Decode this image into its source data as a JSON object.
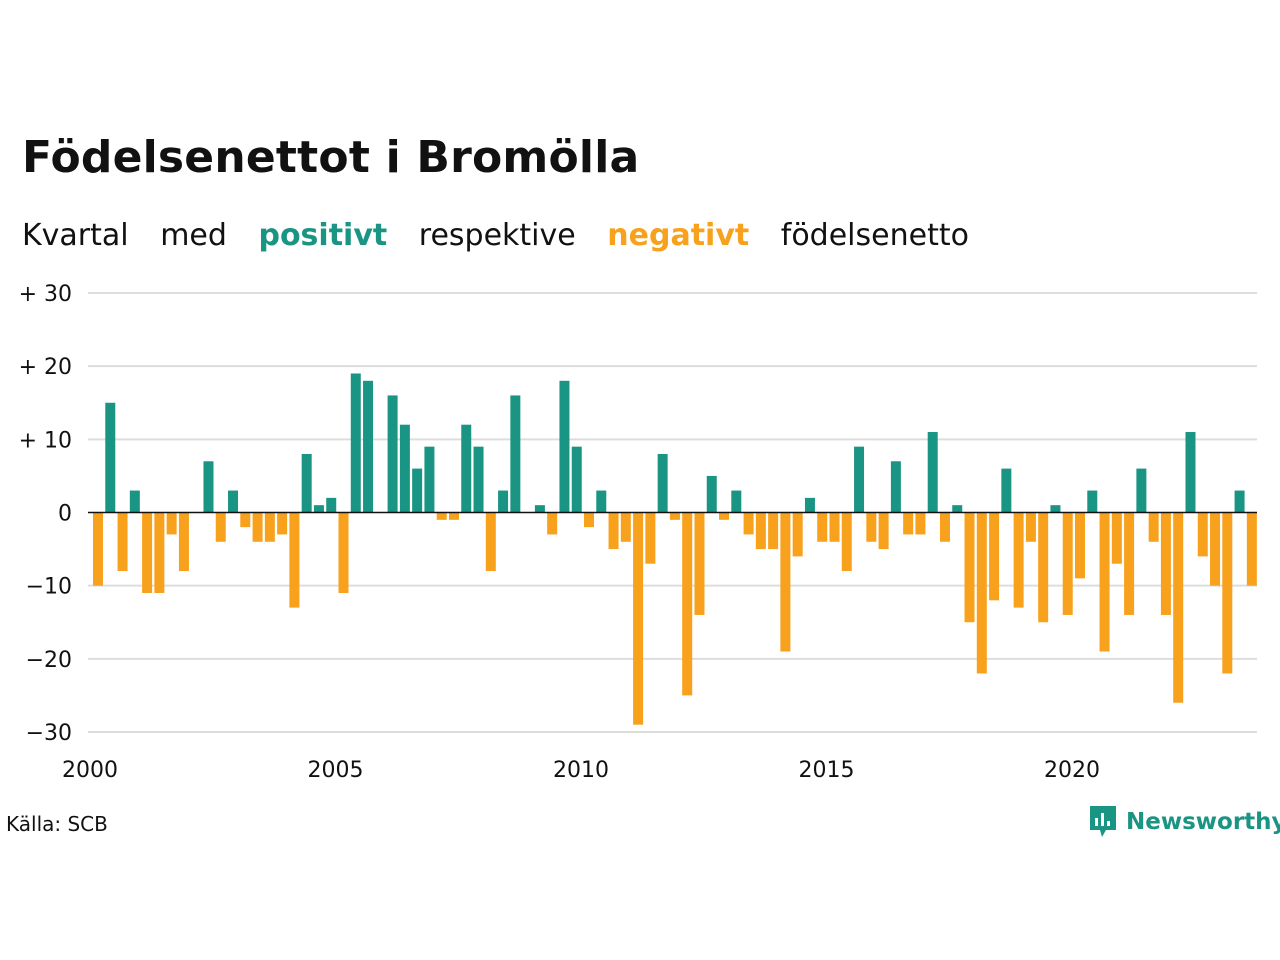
{
  "title": "Födelsenettot i Bromölla",
  "subtitle": {
    "w1": "Kvartal",
    "w2": "med",
    "positive": "positivt",
    "w3": "respektive",
    "negative": "negativt",
    "w4": "födelsenetto"
  },
  "source": "Källa: SCB",
  "logo": {
    "text": "Newsworthy",
    "icon": "newsworthy-chart-icon"
  },
  "colors": {
    "positive": "#1a9483",
    "negative": "#f7a11c",
    "grid": "#dddddd",
    "zero": "#111111"
  },
  "chart_data": {
    "type": "bar",
    "x_start": "2000 Q1",
    "ylim": [
      -30,
      30
    ],
    "yticks": [
      {
        "v": 30,
        "label": "+ 30"
      },
      {
        "v": 20,
        "label": "+ 20"
      },
      {
        "v": 10,
        "label": "+ 10"
      },
      {
        "v": 0,
        "label": "0"
      },
      {
        "v": -10,
        "label": "−10"
      },
      {
        "v": -20,
        "label": "−20"
      },
      {
        "v": -30,
        "label": "−30"
      }
    ],
    "xticks": [
      "2000",
      "2005",
      "2010",
      "2015",
      "2020"
    ],
    "grid": true,
    "values": [
      -10,
      15,
      -8,
      3,
      -11,
      -11,
      -3,
      -8,
      0,
      7,
      -4,
      3,
      -2,
      -4,
      -4,
      -3,
      -13,
      8,
      1,
      2,
      -11,
      19,
      18,
      0,
      16,
      12,
      6,
      9,
      -1,
      -1,
      12,
      9,
      -8,
      3,
      16,
      0,
      1,
      -3,
      18,
      9,
      -2,
      3,
      -5,
      -4,
      -29,
      -7,
      8,
      -1,
      -25,
      -14,
      5,
      -1,
      3,
      -3,
      -5,
      -5,
      -19,
      -6,
      2,
      -4,
      -4,
      -8,
      9,
      -4,
      -5,
      7,
      -3,
      -3,
      11,
      -4,
      1,
      -15,
      -22,
      -12,
      6,
      -13,
      -4,
      -15,
      1,
      -14,
      -9,
      3,
      -19,
      -7,
      -14,
      6,
      -4,
      -14,
      -26,
      11,
      -6,
      -10,
      -22,
      3,
      -10
    ]
  }
}
